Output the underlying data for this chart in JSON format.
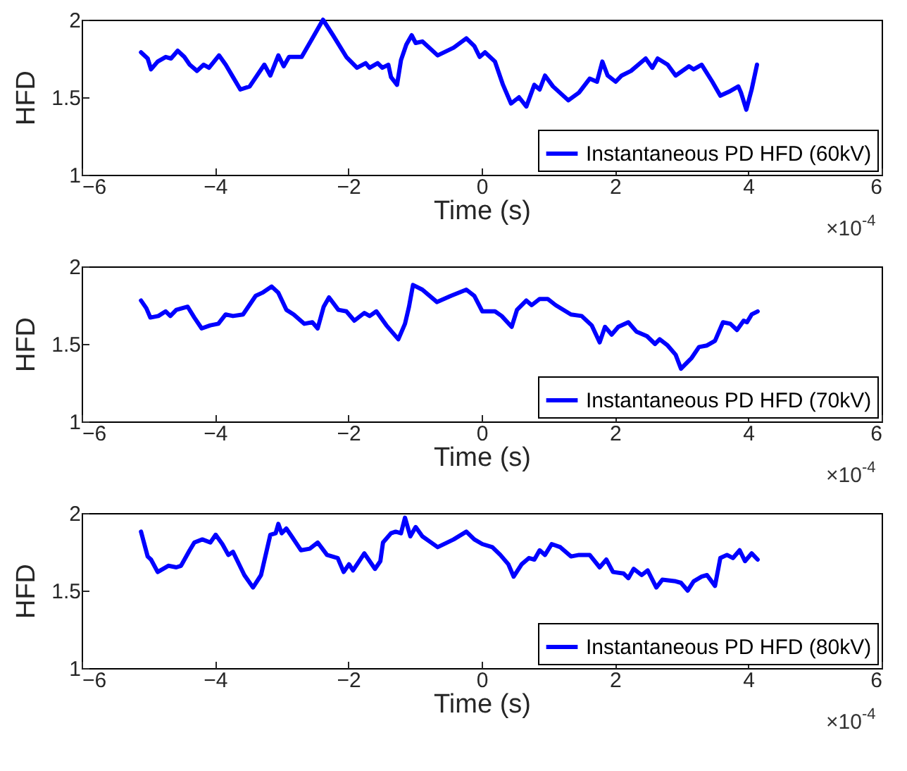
{
  "chart_data": [
    {
      "type": "line",
      "xlabel": "Time (s)",
      "ylabel": "HFD",
      "xlim": [
        -6,
        6
      ],
      "xticks": [
        -6,
        -4,
        -2,
        0,
        2,
        4,
        6
      ],
      "ylim": [
        1,
        2
      ],
      "yticks": [
        1,
        1.5,
        2
      ],
      "grid": false,
      "legend": "bottom right",
      "annotations": [
        "×10$^{-4}$"
      ],
      "series": [
        {
          "name": "Instantaneous PD HFD (60kV)",
          "color": "#0000ff",
          "x": [
            -5.11,
            -5.01,
            -4.96,
            -4.86,
            -4.74,
            -4.66,
            -4.56,
            -4.46,
            -4.38,
            -4.27,
            -4.17,
            -4.09,
            -3.94,
            -3.84,
            -3.73,
            -3.62,
            -3.48,
            -3.26,
            -3.17,
            -3.05,
            -2.97,
            -2.89,
            -2.7,
            -2.54,
            -2.38,
            -2.23,
            -2.03,
            -1.87,
            -1.74,
            -1.68,
            -1.56,
            -1.49,
            -1.4,
            -1.36,
            -1.27,
            -1.21,
            -1.13,
            -1.05,
            -0.99,
            -0.89,
            -0.66,
            -0.42,
            -0.23,
            -0.11,
            -0.03,
            0.05,
            0.2,
            0.32,
            0.44,
            0.56,
            0.67,
            0.79,
            0.87,
            0.95,
            1.07,
            1.3,
            1.46,
            1.62,
            1.73,
            1.81,
            1.89,
            2.01,
            2.1,
            2.24,
            2.46,
            2.56,
            2.64,
            2.79,
            2.91,
            3.11,
            3.18,
            3.3,
            3.46,
            3.58,
            3.73,
            3.85,
            3.89,
            3.97,
            4.05,
            4.13
          ],
          "values": [
            1.79,
            1.75,
            1.68,
            1.73,
            1.76,
            1.75,
            1.8,
            1.76,
            1.71,
            1.67,
            1.71,
            1.69,
            1.77,
            1.71,
            1.63,
            1.55,
            1.57,
            1.71,
            1.64,
            1.77,
            1.7,
            1.76,
            1.76,
            1.88,
            2.0,
            1.9,
            1.76,
            1.69,
            1.72,
            1.69,
            1.72,
            1.69,
            1.71,
            1.63,
            1.58,
            1.74,
            1.84,
            1.9,
            1.85,
            1.86,
            1.77,
            1.82,
            1.88,
            1.83,
            1.76,
            1.79,
            1.73,
            1.58,
            1.46,
            1.5,
            1.44,
            1.58,
            1.55,
            1.64,
            1.57,
            1.48,
            1.53,
            1.62,
            1.6,
            1.73,
            1.64,
            1.6,
            1.64,
            1.67,
            1.75,
            1.69,
            1.75,
            1.71,
            1.64,
            1.7,
            1.68,
            1.71,
            1.6,
            1.51,
            1.54,
            1.57,
            1.53,
            1.42,
            1.55,
            1.71
          ]
        }
      ]
    },
    {
      "type": "line",
      "xlabel": "Time (s)",
      "ylabel": "HFD",
      "xlim": [
        -6,
        6
      ],
      "xticks": [
        -6,
        -4,
        -2,
        0,
        2,
        4,
        6
      ],
      "ylim": [
        1,
        2
      ],
      "yticks": [
        1,
        1.5,
        2
      ],
      "grid": false,
      "legend": "bottom right",
      "annotations": [
        "×10$^{-4}$"
      ],
      "series": [
        {
          "name": "Instantaneous PD HFD (70kV)",
          "color": "#0000ff",
          "x": [
            -5.11,
            -5.03,
            -4.97,
            -4.85,
            -4.74,
            -4.67,
            -4.58,
            -4.41,
            -4.31,
            -4.2,
            -4.07,
            -3.95,
            -3.84,
            -3.73,
            -3.58,
            -3.39,
            -3.29,
            -3.15,
            -3.05,
            -2.93,
            -2.82,
            -2.66,
            -2.54,
            -2.46,
            -2.37,
            -2.29,
            -2.15,
            -2.03,
            -1.91,
            -1.76,
            -1.68,
            -1.58,
            -1.43,
            -1.25,
            -1.15,
            -1.09,
            -1.03,
            -0.89,
            -0.67,
            -0.46,
            -0.23,
            -0.11,
            0.01,
            0.2,
            0.3,
            0.45,
            0.53,
            0.67,
            0.75,
            0.87,
            0.99,
            1.11,
            1.34,
            1.5,
            1.65,
            1.77,
            1.85,
            1.95,
            2.05,
            2.2,
            2.32,
            2.48,
            2.6,
            2.67,
            2.79,
            2.91,
            2.99,
            3.15,
            3.26,
            3.38,
            3.5,
            3.62,
            3.73,
            3.83,
            3.93,
            3.98,
            4.05,
            4.14
          ],
          "values": [
            1.78,
            1.73,
            1.67,
            1.68,
            1.71,
            1.68,
            1.72,
            1.74,
            1.67,
            1.6,
            1.62,
            1.63,
            1.69,
            1.68,
            1.69,
            1.81,
            1.83,
            1.87,
            1.83,
            1.72,
            1.69,
            1.63,
            1.64,
            1.6,
            1.74,
            1.8,
            1.72,
            1.71,
            1.65,
            1.7,
            1.68,
            1.71,
            1.62,
            1.53,
            1.63,
            1.74,
            1.88,
            1.85,
            1.77,
            1.81,
            1.85,
            1.81,
            1.71,
            1.71,
            1.68,
            1.61,
            1.72,
            1.78,
            1.75,
            1.79,
            1.79,
            1.75,
            1.69,
            1.68,
            1.62,
            1.51,
            1.61,
            1.56,
            1.61,
            1.64,
            1.58,
            1.55,
            1.5,
            1.53,
            1.49,
            1.43,
            1.34,
            1.41,
            1.48,
            1.49,
            1.52,
            1.64,
            1.63,
            1.59,
            1.65,
            1.64,
            1.69,
            1.71
          ]
        }
      ]
    },
    {
      "type": "line",
      "xlabel": "Time (s)",
      "ylabel": "HFD",
      "xlim": [
        -6,
        6
      ],
      "xticks": [
        -6,
        -4,
        -2,
        0,
        2,
        4,
        6
      ],
      "ylim": [
        1,
        2
      ],
      "yticks": [
        1,
        1.5,
        2
      ],
      "grid": false,
      "legend": "bottom right",
      "annotations": [
        "×10$^{-4}$"
      ],
      "series": [
        {
          "name": "Instantaneous PD HFD (80kV)",
          "color": "#0000ff",
          "x": [
            -5.11,
            -5.01,
            -4.96,
            -4.86,
            -4.7,
            -4.58,
            -4.51,
            -4.38,
            -4.31,
            -4.19,
            -4.07,
            -3.99,
            -3.89,
            -3.8,
            -3.73,
            -3.56,
            -3.43,
            -3.31,
            -3.17,
            -3.09,
            -3.05,
            -3.0,
            -2.93,
            -2.85,
            -2.71,
            -2.58,
            -2.46,
            -2.32,
            -2.16,
            -2.07,
            -1.99,
            -1.93,
            -1.76,
            -1.6,
            -1.52,
            -1.48,
            -1.36,
            -1.29,
            -1.21,
            -1.15,
            -1.07,
            -0.99,
            -0.89,
            -0.66,
            -0.42,
            -0.23,
            -0.11,
            0.01,
            0.16,
            0.28,
            0.4,
            0.48,
            0.6,
            0.71,
            0.79,
            0.87,
            0.95,
            1.05,
            1.18,
            1.34,
            1.46,
            1.62,
            1.77,
            1.87,
            1.97,
            2.13,
            2.2,
            2.28,
            2.4,
            2.49,
            2.62,
            2.71,
            2.91,
            2.99,
            3.09,
            3.18,
            3.3,
            3.38,
            3.5,
            3.58,
            3.68,
            3.77,
            3.87,
            3.95,
            4.05,
            4.14
          ],
          "values": [
            1.88,
            1.72,
            1.7,
            1.62,
            1.66,
            1.65,
            1.66,
            1.76,
            1.81,
            1.83,
            1.81,
            1.86,
            1.8,
            1.73,
            1.75,
            1.6,
            1.52,
            1.6,
            1.86,
            1.87,
            1.93,
            1.87,
            1.9,
            1.85,
            1.76,
            1.77,
            1.81,
            1.73,
            1.71,
            1.62,
            1.67,
            1.63,
            1.74,
            1.64,
            1.69,
            1.81,
            1.87,
            1.88,
            1.87,
            1.97,
            1.85,
            1.91,
            1.85,
            1.78,
            1.83,
            1.88,
            1.83,
            1.8,
            1.78,
            1.73,
            1.67,
            1.59,
            1.67,
            1.71,
            1.7,
            1.76,
            1.73,
            1.8,
            1.78,
            1.72,
            1.73,
            1.73,
            1.65,
            1.7,
            1.62,
            1.61,
            1.58,
            1.64,
            1.6,
            1.63,
            1.52,
            1.57,
            1.56,
            1.55,
            1.5,
            1.56,
            1.59,
            1.6,
            1.53,
            1.71,
            1.73,
            1.71,
            1.76,
            1.69,
            1.74,
            1.7
          ]
        }
      ]
    }
  ]
}
